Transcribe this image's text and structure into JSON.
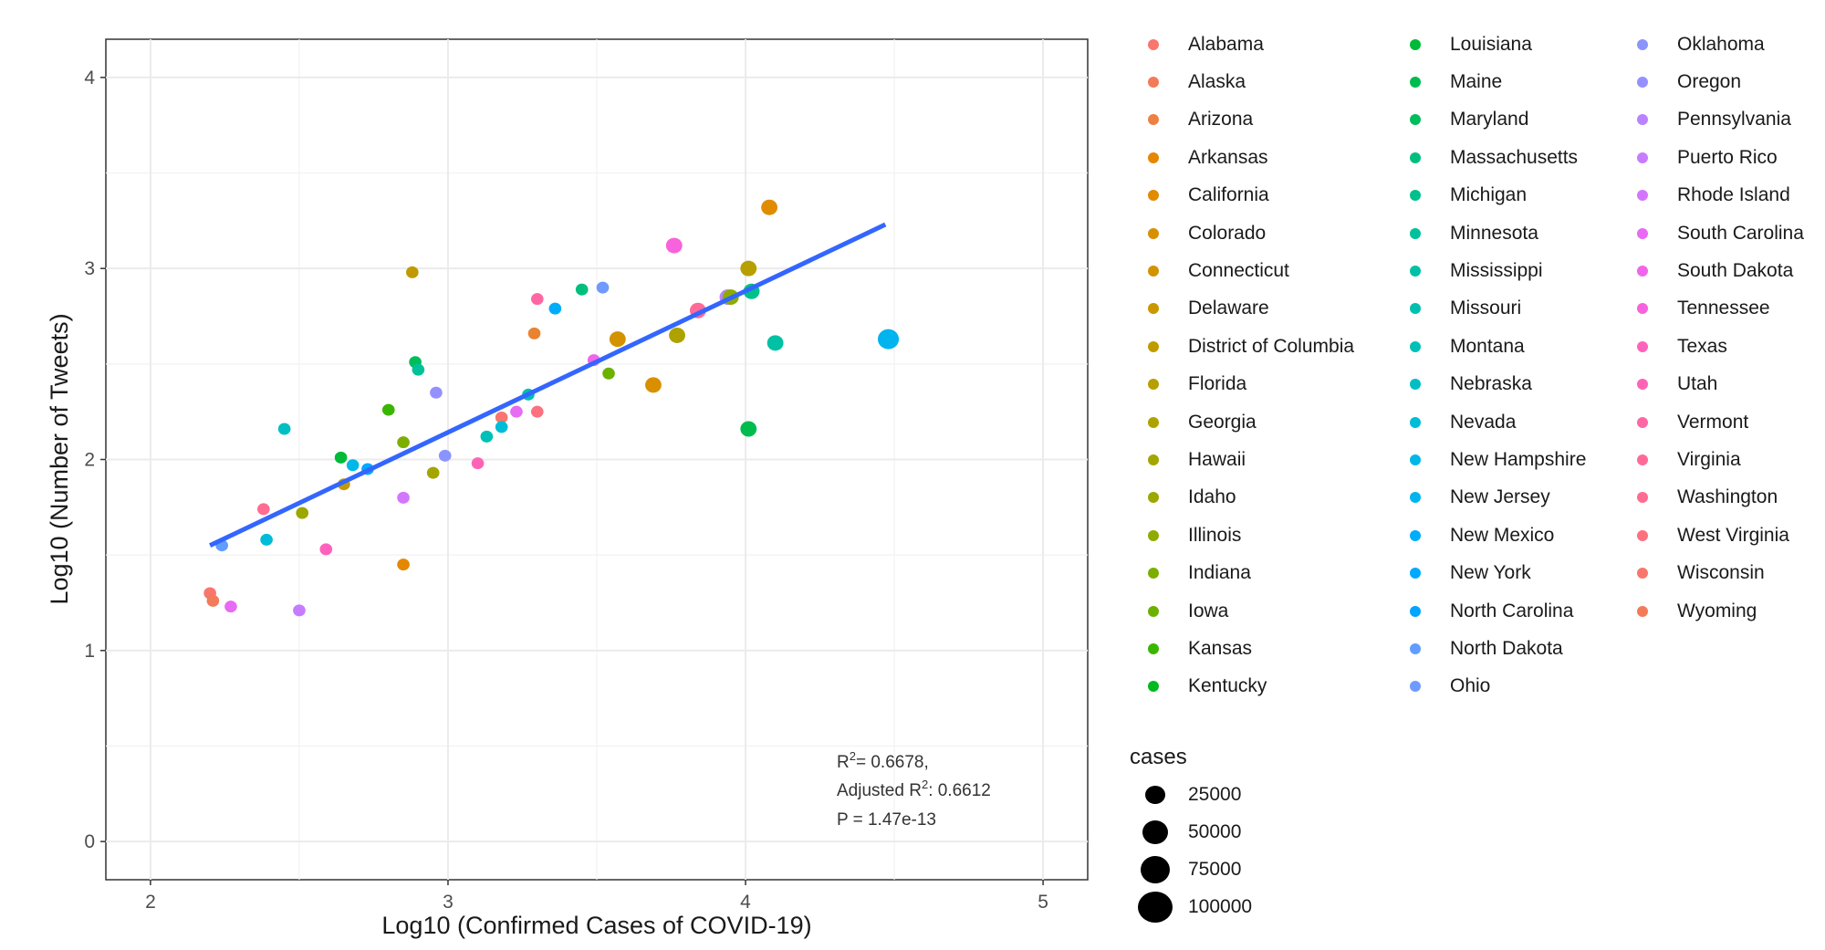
{
  "chart_data": {
    "type": "scatter",
    "title": "",
    "xlabel": "Log10 (Confirmed Cases of COVID-19)",
    "ylabel": "Log10 (Number of Tweets)",
    "xlim": [
      1.85,
      5.15
    ],
    "ylim": [
      -0.2,
      4.2
    ],
    "x_ticks": [
      2,
      3,
      4,
      5
    ],
    "y_ticks": [
      0,
      1,
      2,
      3,
      4
    ],
    "x_tick_labels": [
      "2",
      "3",
      "4",
      "5"
    ],
    "y_tick_labels": [
      "0",
      "1",
      "2",
      "3",
      "4"
    ],
    "grid": true,
    "regression_line": {
      "x": [
        2.2,
        4.47
      ],
      "y": [
        1.55,
        3.23
      ],
      "color": "#3366ff"
    },
    "annotation": {
      "r2_label": "R",
      "r2_value": "= 0.6678,",
      "adj_label": "Adjusted R",
      "adj_value": ": 0.6612",
      "p_text": "P = 1.47e-13",
      "superscript": "2"
    },
    "points": [
      {
        "x": 2.2,
        "y": 1.3,
        "color": "#F8766D",
        "size": 1
      },
      {
        "x": 2.21,
        "y": 1.26,
        "color": "#F37B59",
        "size": 1
      },
      {
        "x": 2.27,
        "y": 1.23,
        "color": "#E76BF3",
        "size": 1
      },
      {
        "x": 2.24,
        "y": 1.55,
        "color": "#619CFF",
        "size": 1
      },
      {
        "x": 2.38,
        "y": 1.74,
        "color": "#FF6C91",
        "size": 1
      },
      {
        "x": 2.39,
        "y": 1.58,
        "color": "#00BCD8",
        "size": 1
      },
      {
        "x": 2.45,
        "y": 2.16,
        "color": "#00BFC4",
        "size": 1
      },
      {
        "x": 2.51,
        "y": 1.72,
        "color": "#9CA700",
        "size": 1
      },
      {
        "x": 2.5,
        "y": 1.21,
        "color": "#C77CFF",
        "size": 1
      },
      {
        "x": 2.59,
        "y": 1.53,
        "color": "#FF62BC",
        "size": 1
      },
      {
        "x": 2.64,
        "y": 2.01,
        "color": "#00BA38",
        "size": 1
      },
      {
        "x": 2.65,
        "y": 1.87,
        "color": "#C49A00",
        "size": 1
      },
      {
        "x": 2.68,
        "y": 1.97,
        "color": "#00B8E7",
        "size": 1
      },
      {
        "x": 2.73,
        "y": 1.95,
        "color": "#00A9FF",
        "size": 1
      },
      {
        "x": 2.8,
        "y": 2.26,
        "color": "#39B600",
        "size": 1
      },
      {
        "x": 2.85,
        "y": 2.09,
        "color": "#7CAE00",
        "size": 1
      },
      {
        "x": 2.85,
        "y": 1.45,
        "color": "#E58700",
        "size": 1
      },
      {
        "x": 2.85,
        "y": 1.8,
        "color": "#D376FF",
        "size": 1
      },
      {
        "x": 2.88,
        "y": 2.98,
        "color": "#C09B00",
        "size": 1
      },
      {
        "x": 2.89,
        "y": 2.51,
        "color": "#00BD5C",
        "size": 1
      },
      {
        "x": 2.9,
        "y": 2.47,
        "color": "#00C19A",
        "size": 1
      },
      {
        "x": 2.95,
        "y": 1.93,
        "color": "#A3A500",
        "size": 1
      },
      {
        "x": 2.96,
        "y": 2.35,
        "color": "#9590FF",
        "size": 1
      },
      {
        "x": 2.99,
        "y": 2.02,
        "color": "#8B93FF",
        "size": 1
      },
      {
        "x": 3.1,
        "y": 1.98,
        "color": "#FF63B6",
        "size": 1
      },
      {
        "x": 3.13,
        "y": 2.12,
        "color": "#00C0B8",
        "size": 1
      },
      {
        "x": 3.18,
        "y": 2.22,
        "color": "#F8766D",
        "size": 1
      },
      {
        "x": 3.18,
        "y": 2.17,
        "color": "#00BCD8",
        "size": 1
      },
      {
        "x": 3.23,
        "y": 2.25,
        "color": "#E76BF3",
        "size": 1
      },
      {
        "x": 3.27,
        "y": 2.34,
        "color": "#00BFAF",
        "size": 1
      },
      {
        "x": 3.29,
        "y": 2.66,
        "color": "#EA8331",
        "size": 1
      },
      {
        "x": 3.3,
        "y": 2.25,
        "color": "#FC717F",
        "size": 1
      },
      {
        "x": 3.3,
        "y": 2.84,
        "color": "#FF67A4",
        "size": 1
      },
      {
        "x": 3.36,
        "y": 2.79,
        "color": "#00ADFA",
        "size": 1
      },
      {
        "x": 3.45,
        "y": 2.89,
        "color": "#00BF7D",
        "size": 1
      },
      {
        "x": 3.49,
        "y": 2.52,
        "color": "#F066EA",
        "size": 1
      },
      {
        "x": 3.52,
        "y": 2.9,
        "color": "#6F9BFF",
        "size": 1
      },
      {
        "x": 3.54,
        "y": 2.45,
        "color": "#6BB100",
        "size": 1
      },
      {
        "x": 3.57,
        "y": 2.63,
        "color": "#D39200",
        "size": 2
      },
      {
        "x": 3.69,
        "y": 2.39,
        "color": "#D89000",
        "size": 2
      },
      {
        "x": 3.76,
        "y": 3.12,
        "color": "#F962DD",
        "size": 2
      },
      {
        "x": 3.77,
        "y": 2.65,
        "color": "#AEA200",
        "size": 2
      },
      {
        "x": 3.84,
        "y": 2.78,
        "color": "#FF6A98",
        "size": 2
      },
      {
        "x": 3.94,
        "y": 2.85,
        "color": "#B983FF",
        "size": 2
      },
      {
        "x": 3.95,
        "y": 2.85,
        "color": "#8EAB00",
        "size": 2
      },
      {
        "x": 4.01,
        "y": 3.0,
        "color": "#B79F00",
        "size": 2
      },
      {
        "x": 4.02,
        "y": 2.88,
        "color": "#00C08B",
        "size": 2
      },
      {
        "x": 4.01,
        "y": 2.16,
        "color": "#00BB4E",
        "size": 2
      },
      {
        "x": 4.08,
        "y": 3.32,
        "color": "#E08B00",
        "size": 2
      },
      {
        "x": 4.1,
        "y": 2.61,
        "color": "#00C1A3",
        "size": 2
      },
      {
        "x": 4.48,
        "y": 2.63,
        "color": "#00B4EF",
        "size": 3
      }
    ],
    "legend": {
      "placement": "right",
      "columns": [
        [
          {
            "label": "Alabama",
            "color": "#F8766D"
          },
          {
            "label": "Alaska",
            "color": "#F37B59"
          },
          {
            "label": "Arizona",
            "color": "#ED8141"
          },
          {
            "label": "Arkansas",
            "color": "#E58700"
          },
          {
            "label": "California",
            "color": "#E08B00"
          },
          {
            "label": "Colorado",
            "color": "#D89000"
          },
          {
            "label": "Connecticut",
            "color": "#D39200"
          },
          {
            "label": "Delaware",
            "color": "#C99800"
          },
          {
            "label": "District of Columbia",
            "color": "#C09B00"
          },
          {
            "label": "Florida",
            "color": "#B79F00"
          },
          {
            "label": "Georgia",
            "color": "#AEA200"
          },
          {
            "label": "Hawaii",
            "color": "#A3A500"
          },
          {
            "label": "Idaho",
            "color": "#9CA700"
          },
          {
            "label": "Illinois",
            "color": "#8EAB00"
          },
          {
            "label": "Indiana",
            "color": "#7CAE00"
          },
          {
            "label": "Iowa",
            "color": "#6BB100"
          },
          {
            "label": "Kansas",
            "color": "#39B600"
          },
          {
            "label": "Kentucky",
            "color": "#00B81F"
          }
        ],
        [
          {
            "label": "Louisiana",
            "color": "#00BA38"
          },
          {
            "label": "Maine",
            "color": "#00BB4E"
          },
          {
            "label": "Maryland",
            "color": "#00BD5C"
          },
          {
            "label": "Massachusetts",
            "color": "#00BF7D"
          },
          {
            "label": "Michigan",
            "color": "#00C08B"
          },
          {
            "label": "Minnesota",
            "color": "#00C19A"
          },
          {
            "label": "Mississippi",
            "color": "#00C1A3"
          },
          {
            "label": "Missouri",
            "color": "#00BFAF"
          },
          {
            "label": "Montana",
            "color": "#00C0B8"
          },
          {
            "label": "Nebraska",
            "color": "#00BFC4"
          },
          {
            "label": "Nevada",
            "color": "#00BCD8"
          },
          {
            "label": "New Hampshire",
            "color": "#00B8E7"
          },
          {
            "label": "New Jersey",
            "color": "#00B4EF"
          },
          {
            "label": "New Mexico",
            "color": "#00ADFA"
          },
          {
            "label": "New York",
            "color": "#00A9FF"
          },
          {
            "label": "North Carolina",
            "color": "#00A5FF"
          },
          {
            "label": "North Dakota",
            "color": "#619CFF"
          },
          {
            "label": "Ohio",
            "color": "#6F9BFF"
          }
        ],
        [
          {
            "label": "Oklahoma",
            "color": "#8B93FF"
          },
          {
            "label": "Oregon",
            "color": "#9590FF"
          },
          {
            "label": "Pennsylvania",
            "color": "#B983FF"
          },
          {
            "label": "Puerto Rico",
            "color": "#C77CFF"
          },
          {
            "label": "Rhode Island",
            "color": "#D376FF"
          },
          {
            "label": "South Carolina",
            "color": "#E76BF3"
          },
          {
            "label": "South Dakota",
            "color": "#F066EA"
          },
          {
            "label": "Tennessee",
            "color": "#F962DD"
          },
          {
            "label": "Texas",
            "color": "#FF62BC"
          },
          {
            "label": "Utah",
            "color": "#FF63B6"
          },
          {
            "label": "Vermont",
            "color": "#FF67A4"
          },
          {
            "label": "Virginia",
            "color": "#FF6A98"
          },
          {
            "label": "Washington",
            "color": "#FF6C91"
          },
          {
            "label": "West Virginia",
            "color": "#FC717F"
          },
          {
            "label": "Wisconsin",
            "color": "#F8766D"
          },
          {
            "label": "Wyoming",
            "color": "#F37B59"
          }
        ]
      ]
    },
    "size_legend": {
      "title": "cases",
      "entries": [
        {
          "label": "25000",
          "value": 25000
        },
        {
          "label": "50000",
          "value": 50000
        },
        {
          "label": "75000",
          "value": 75000
        },
        {
          "label": "100000",
          "value": 100000
        }
      ]
    }
  }
}
